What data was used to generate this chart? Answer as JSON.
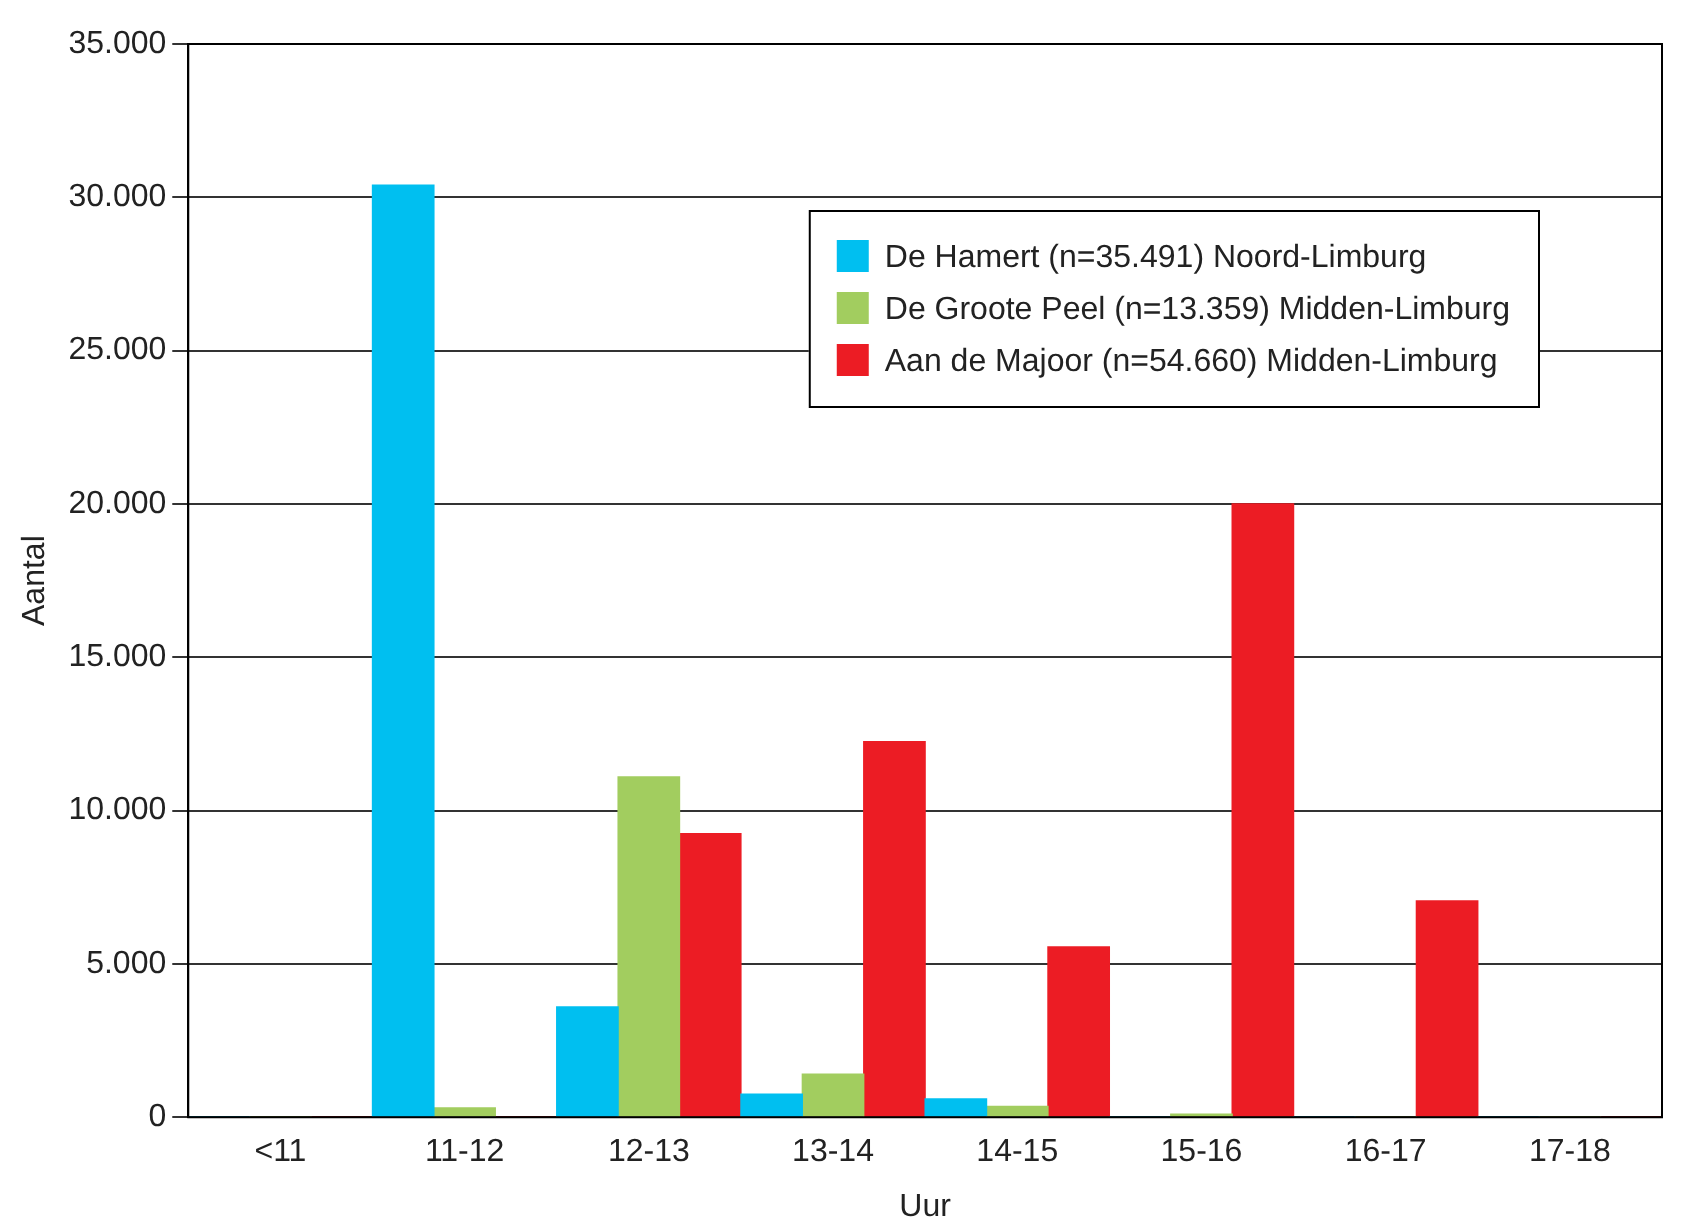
{
  "chart_data": {
    "type": "bar",
    "xlabel": "Uur",
    "ylabel": "Aantal",
    "categories": [
      "<11",
      "11-12",
      "12-13",
      "13-14",
      "14-15",
      "15-16",
      "16-17",
      "17-18"
    ],
    "series": [
      {
        "name": "De Hamert (n=35.491) Noord-Limburg",
        "color": "#00bff0",
        "values": [
          0,
          30400,
          3600,
          750,
          600,
          0,
          0,
          0
        ]
      },
      {
        "name": "De Groote Peel (n=13.359) Midden-Limburg",
        "color": "#a2cd5f",
        "values": [
          0,
          300,
          11100,
          1400,
          350,
          100,
          0,
          0
        ]
      },
      {
        "name": "Aan de Majoor (n=54.660) Midden-Limburg",
        "color": "#ec1c24",
        "values": [
          0,
          0,
          9250,
          12250,
          5550,
          20000,
          7050,
          0
        ]
      }
    ],
    "ylim": [
      0,
      35000
    ],
    "yticks": [
      {
        "value": 0,
        "label": "0"
      },
      {
        "value": 5000,
        "label": "5.000"
      },
      {
        "value": 10000,
        "label": "10.000"
      },
      {
        "value": 15000,
        "label": "15.000"
      },
      {
        "value": 20000,
        "label": "20.000"
      },
      {
        "value": 25000,
        "label": "25.000"
      },
      {
        "value": 30000,
        "label": "30.000"
      },
      {
        "value": 35000,
        "label": "35.000"
      }
    ],
    "grid": "y",
    "legend": "top right"
  }
}
